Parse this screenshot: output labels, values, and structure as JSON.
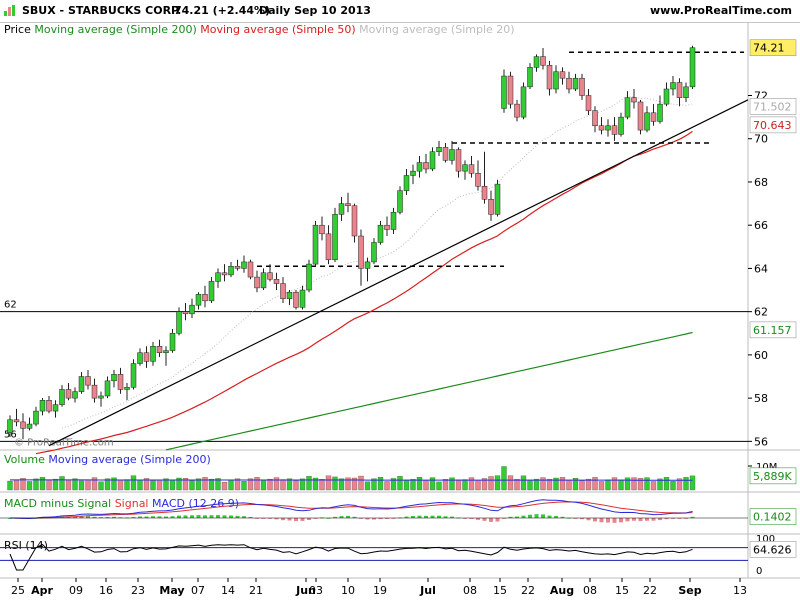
{
  "header": {
    "symbol": "SBUX - STARBUCKS CORP.",
    "quote": "74.21 (+2.44%)",
    "period": "Daily  Sep 10 2013",
    "site": "www.ProRealTime.com",
    "icon": "chart-icon"
  },
  "price_panel": {
    "legend_price": "Price",
    "legend_ma200": "Moving average (Simple 200)",
    "legend_ma50": "Moving average (Simple 50)",
    "legend_ma20": "Moving average (Simple 20)",
    "copyright": "© ProRealTime.com",
    "level_label": "62",
    "level_label_bottom": "56"
  },
  "volume_panel": {
    "legend_a": "Volume",
    "legend_b": "Moving average (Simple 200)",
    "tick": "10M",
    "value_tag": "5,889K"
  },
  "macd_panel": {
    "legend_a": "MACD minus Signal",
    "legend_b": "Signal",
    "legend_c": "MACD (12 26 9)",
    "value_tag": "0.1402"
  },
  "rsi_panel": {
    "legend": "RSI (14)",
    "ticks": [
      "100",
      "0"
    ],
    "value_tag": "64.626"
  },
  "colors": {
    "up": "#33cc33",
    "down": "#e8848c",
    "ma200": "#1a8a1a",
    "ma50": "#d81e1e",
    "ma20": "#bdbdbd",
    "trend": "#000000",
    "volume_ma": "#2b2bdd",
    "macd": "#2b2bdd",
    "signal": "#e03030"
  },
  "chart_data": {
    "type": "candlestick",
    "title": "SBUX - STARBUCKS CORP.",
    "frequency": "Daily",
    "date": "Sep 10 2013",
    "last_price": 74.21,
    "change_pct": 2.44,
    "y_ticks": [
      56,
      58,
      60,
      62,
      64,
      66,
      68,
      70,
      72
    ],
    "ylim": [
      55.6,
      75.4
    ],
    "x_tick_labels": [
      "25",
      "Apr",
      "09",
      "16",
      "23",
      "May",
      "07",
      "14",
      "21",
      "Jun",
      "03",
      "10",
      "19",
      "Jul",
      "08",
      "15",
      "22",
      "Aug",
      "08",
      "15",
      "22",
      "Sep",
      "13"
    ],
    "tags": {
      "price": "74.21",
      "ma20": "71.502",
      "ma50": "70.643",
      "ma200": "61.157"
    },
    "horizontal_levels": [
      62,
      56
    ],
    "candles": [
      [
        56.4,
        57.2,
        56.2,
        57.0
      ],
      [
        57.0,
        57.5,
        56.7,
        56.9
      ],
      [
        56.9,
        57.3,
        56.1,
        56.6
      ],
      [
        56.6,
        57.1,
        56.5,
        56.8
      ],
      [
        56.8,
        57.6,
        56.7,
        57.4
      ],
      [
        57.4,
        58.0,
        57.2,
        57.9
      ],
      [
        57.9,
        58.1,
        57.3,
        57.4
      ],
      [
        57.4,
        57.9,
        57.1,
        57.7
      ],
      [
        57.7,
        58.6,
        57.6,
        58.4
      ],
      [
        58.4,
        58.7,
        57.9,
        58.0
      ],
      [
        58.0,
        58.5,
        57.8,
        58.3
      ],
      [
        58.3,
        59.2,
        58.2,
        59.0
      ],
      [
        59.0,
        59.3,
        58.4,
        58.6
      ],
      [
        58.6,
        58.9,
        57.8,
        58.0
      ],
      [
        58.0,
        58.3,
        57.6,
        58.1
      ],
      [
        58.1,
        59.0,
        58.0,
        58.8
      ],
      [
        58.8,
        59.3,
        58.5,
        59.1
      ],
      [
        59.1,
        59.4,
        58.2,
        58.4
      ],
      [
        58.4,
        58.7,
        57.9,
        58.5
      ],
      [
        58.5,
        59.8,
        58.4,
        59.6
      ],
      [
        59.6,
        60.3,
        59.5,
        60.1
      ],
      [
        60.1,
        60.4,
        59.4,
        59.7
      ],
      [
        59.7,
        60.6,
        59.5,
        60.4
      ],
      [
        60.4,
        60.7,
        59.9,
        60.1
      ],
      [
        60.1,
        60.4,
        59.5,
        60.2
      ],
      [
        60.2,
        61.2,
        60.1,
        61.0
      ],
      [
        61.0,
        62.2,
        60.9,
        62.0
      ],
      [
        62.0,
        62.4,
        61.6,
        61.9
      ],
      [
        61.9,
        62.6,
        61.7,
        62.3
      ],
      [
        62.3,
        62.9,
        62.1,
        62.8
      ],
      [
        62.8,
        63.2,
        62.2,
        62.5
      ],
      [
        62.5,
        63.6,
        62.4,
        63.4
      ],
      [
        63.4,
        64.0,
        63.1,
        63.8
      ],
      [
        63.8,
        64.2,
        63.4,
        63.7
      ],
      [
        63.7,
        64.3,
        63.6,
        64.1
      ],
      [
        64.1,
        64.4,
        63.9,
        64.0
      ],
      [
        64.0,
        64.6,
        63.8,
        64.3
      ],
      [
        64.3,
        64.4,
        63.5,
        63.6
      ],
      [
        63.6,
        63.9,
        62.9,
        63.1
      ],
      [
        63.1,
        64.0,
        63.0,
        63.8
      ],
      [
        63.8,
        64.2,
        63.4,
        63.5
      ],
      [
        63.5,
        63.8,
        63.0,
        63.3
      ],
      [
        63.3,
        63.6,
        62.4,
        62.6
      ],
      [
        62.6,
        63.0,
        62.3,
        62.9
      ],
      [
        62.9,
        63.0,
        62.1,
        62.2
      ],
      [
        62.2,
        63.2,
        62.1,
        63.0
      ],
      [
        63.0,
        64.4,
        62.9,
        64.2
      ],
      [
        64.2,
        66.2,
        64.1,
        66.0
      ],
      [
        66.0,
        66.4,
        65.3,
        65.6
      ],
      [
        65.6,
        66.0,
        64.2,
        64.4
      ],
      [
        64.4,
        66.8,
        64.3,
        66.5
      ],
      [
        66.5,
        67.3,
        66.2,
        67.0
      ],
      [
        67.0,
        67.5,
        66.6,
        66.9
      ],
      [
        66.9,
        67.0,
        65.2,
        65.5
      ],
      [
        65.5,
        65.8,
        63.2,
        64.0
      ],
      [
        64.0,
        64.5,
        63.4,
        64.3
      ],
      [
        64.3,
        65.4,
        64.2,
        65.2
      ],
      [
        65.2,
        66.2,
        65.1,
        66.0
      ],
      [
        66.0,
        66.4,
        65.5,
        65.8
      ],
      [
        65.8,
        66.8,
        65.6,
        66.6
      ],
      [
        66.6,
        67.8,
        66.5,
        67.6
      ],
      [
        67.6,
        68.6,
        67.4,
        68.3
      ],
      [
        68.3,
        68.8,
        67.9,
        68.5
      ],
      [
        68.5,
        69.2,
        68.2,
        68.9
      ],
      [
        68.9,
        69.3,
        68.4,
        68.6
      ],
      [
        68.6,
        69.6,
        68.5,
        69.4
      ],
      [
        69.4,
        69.9,
        69.2,
        69.6
      ],
      [
        69.6,
        69.8,
        68.9,
        69.0
      ],
      [
        69.0,
        69.9,
        68.8,
        69.5
      ],
      [
        69.5,
        69.6,
        68.2,
        68.5
      ],
      [
        68.5,
        69.0,
        68.1,
        68.8
      ],
      [
        68.8,
        69.2,
        68.2,
        68.4
      ],
      [
        68.4,
        69.0,
        67.6,
        67.8
      ],
      [
        67.8,
        69.4,
        67.0,
        67.2
      ],
      [
        67.2,
        67.6,
        66.2,
        66.5
      ],
      [
        66.5,
        68.1,
        66.4,
        67.9
      ],
      [
        71.4,
        73.2,
        71.2,
        72.9
      ],
      [
        72.9,
        73.1,
        71.4,
        71.6
      ],
      [
        71.6,
        71.8,
        70.8,
        71.0
      ],
      [
        71.0,
        72.6,
        70.9,
        72.4
      ],
      [
        72.4,
        73.5,
        72.3,
        73.3
      ],
      [
        73.3,
        73.9,
        73.1,
        73.8
      ],
      [
        73.8,
        74.2,
        73.2,
        73.4
      ],
      [
        73.4,
        73.6,
        72.0,
        72.3
      ],
      [
        72.3,
        73.4,
        72.1,
        73.1
      ],
      [
        73.1,
        73.3,
        72.5,
        72.8
      ],
      [
        72.8,
        73.1,
        72.1,
        72.3
      ],
      [
        72.3,
        73.0,
        72.2,
        72.8
      ],
      [
        72.8,
        73.0,
        71.8,
        72.0
      ],
      [
        72.0,
        72.3,
        71.1,
        71.3
      ],
      [
        71.3,
        71.5,
        70.3,
        70.6
      ],
      [
        70.6,
        71.0,
        70.2,
        70.4
      ],
      [
        70.4,
        70.9,
        70.1,
        70.6
      ],
      [
        70.6,
        71.0,
        69.9,
        70.2
      ],
      [
        70.2,
        71.2,
        70.1,
        71.0
      ],
      [
        71.0,
        72.2,
        70.9,
        71.9
      ],
      [
        71.9,
        72.3,
        71.4,
        71.7
      ],
      [
        71.7,
        71.8,
        70.2,
        70.4
      ],
      [
        70.4,
        71.5,
        70.3,
        71.2
      ],
      [
        71.2,
        71.6,
        70.6,
        70.8
      ],
      [
        70.8,
        72.0,
        70.7,
        71.6
      ],
      [
        71.6,
        72.6,
        71.5,
        72.3
      ],
      [
        72.3,
        72.9,
        72.0,
        72.6
      ],
      [
        72.6,
        72.8,
        71.5,
        71.9
      ],
      [
        71.9,
        72.6,
        71.7,
        72.4
      ],
      [
        72.4,
        74.3,
        72.3,
        74.21
      ]
    ],
    "volume_max_label": "10M",
    "volume_last": "5,889K",
    "macd_last": 0.1402,
    "rsi_last": 64.626
  }
}
